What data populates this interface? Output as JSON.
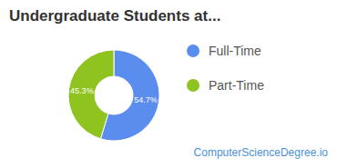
{
  "chart_data": {
    "type": "pie",
    "title": "Undergraduate Students at...",
    "categories": [
      "Full-Time",
      "Part-Time"
    ],
    "values": [
      54.7,
      45.3
    ],
    "value_labels": [
      "54.7%",
      "45.3%"
    ],
    "colors": [
      "#5a8dee",
      "#8fc31f"
    ],
    "data_labels": true,
    "legend": "right",
    "source": "ComputerScienceDegree.io"
  }
}
